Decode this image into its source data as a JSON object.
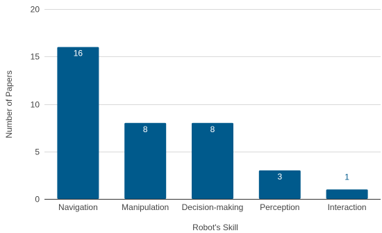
{
  "chart_data": {
    "type": "bar",
    "categories": [
      "Navigation",
      "Manipulation",
      "Decision-making",
      "Perception",
      "Interaction"
    ],
    "values": [
      16,
      8,
      8,
      3,
      1
    ],
    "title": "",
    "xlabel": "Robot's Skill",
    "ylabel": "Number of Papers",
    "ylim": [
      0,
      20
    ],
    "yticks": [
      0,
      5,
      10,
      15,
      20
    ],
    "grid": true,
    "legend": "none",
    "colors": {
      "bar": "#005a8c",
      "label_inside": "#ffffff",
      "label_outside": "#005a8c"
    }
  }
}
